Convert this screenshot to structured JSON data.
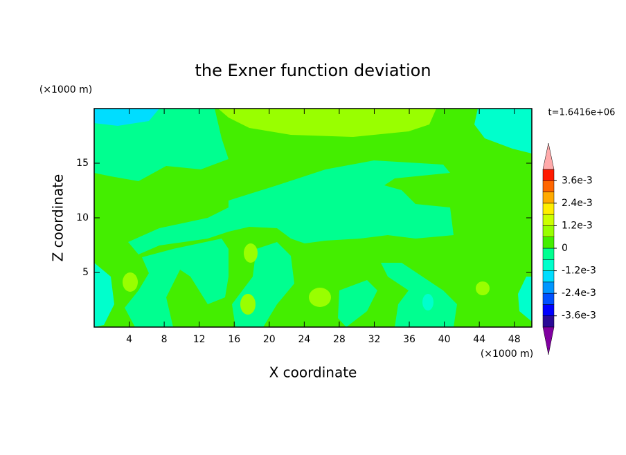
{
  "chart_data": {
    "type": "contour",
    "title": "the Exner function deviation",
    "x_label": "X coordinate",
    "y_label": "Z coordinate",
    "x_unit": "(×1000 m)",
    "y_unit": "(×1000 m)",
    "time_label": "t=1.6416e+06",
    "xlim": [
      0,
      50
    ],
    "ylim": [
      0,
      20
    ],
    "xticks": [
      4,
      8,
      12,
      16,
      20,
      24,
      28,
      32,
      36,
      40,
      44,
      48
    ],
    "yticks": [
      5,
      10,
      15
    ],
    "colorbar": {
      "levels": [
        -0.0042,
        -0.0036,
        -0.003,
        -0.0024,
        -0.0018,
        -0.0012,
        -0.0006,
        0,
        0.0006,
        0.0012,
        0.0018,
        0.0024,
        0.003,
        0.0036,
        0.0042
      ],
      "colors": [
        "#2a0a96",
        "#0000ff",
        "#0050ff",
        "#0096ff",
        "#00ddff",
        "#00ffcc",
        "#00ff90",
        "#44ee00",
        "#99ff00",
        "#ccff00",
        "#ffee00",
        "#ffaa00",
        "#ff6600",
        "#ff1a00"
      ],
      "under_color": "#8000a0",
      "over_color": "#ffaaaa",
      "ticks": [
        {
          "value": 0.0036,
          "label": "3.6e-3"
        },
        {
          "value": 0.0024,
          "label": "2.4e-3"
        },
        {
          "value": 0.0012,
          "label": "1.2e-3"
        },
        0,
        {
          "value": -0.0012,
          "label": "-1.2e-3"
        },
        {
          "value": -0.0024,
          "label": "-2.4e-3"
        },
        {
          "value": -0.0036,
          "label": "-3.6e-3"
        }
      ]
    }
  }
}
